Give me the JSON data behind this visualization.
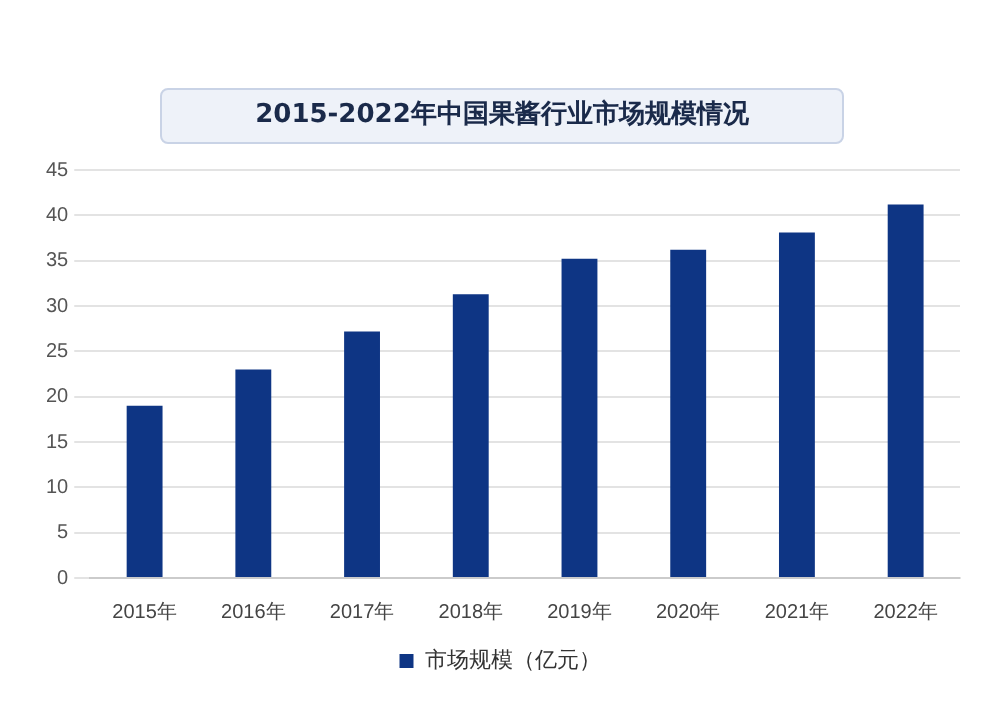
{
  "chart_data": {
    "type": "bar",
    "title": "2015-2022年中国果酱行业市场规模情况",
    "categories": [
      "2015年",
      "2016年",
      "2017年",
      "2018年",
      "2019年",
      "2020年",
      "2021年",
      "2022年"
    ],
    "series": [
      {
        "name": "市场规模（亿元）",
        "color": "#0e3584",
        "values": [
          19.0,
          23.0,
          27.2,
          31.3,
          35.2,
          36.2,
          38.1,
          41.2
        ]
      }
    ],
    "ylim": [
      0,
      45
    ],
    "yticks": [
      0,
      5,
      10,
      15,
      20,
      25,
      30,
      35,
      40,
      45
    ],
    "grid": "y",
    "legend": "bottom"
  }
}
